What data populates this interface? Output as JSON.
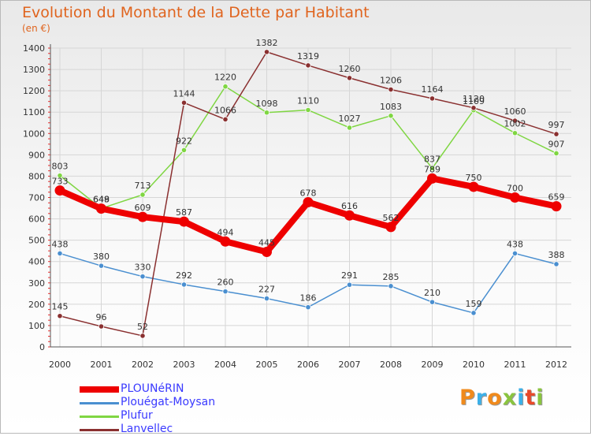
{
  "chart_data": {
    "type": "line",
    "title": "Evolution du Montant de la Dette par Habitant",
    "subtitle": "(en €)",
    "categories": [
      "2000",
      "2001",
      "2002",
      "2003",
      "2004",
      "2005",
      "2006",
      "2007",
      "2008",
      "2009",
      "2010",
      "2011",
      "2012"
    ],
    "ylim": [
      0,
      1400
    ],
    "yticks": [
      0,
      100,
      200,
      300,
      400,
      500,
      600,
      700,
      800,
      900,
      1000,
      1100,
      1200,
      1300,
      1400
    ],
    "grid": true,
    "legend_position": "bottom-left",
    "series": [
      {
        "name": "PLOUNéRIN",
        "color": "#ee0000",
        "width": 8,
        "values": [
          733,
          648,
          609,
          587,
          494,
          445,
          678,
          616,
          562,
          789,
          750,
          700,
          659
        ]
      },
      {
        "name": "Plouégat-Moysan",
        "color": "#4a8fd0",
        "width": 1.5,
        "values": [
          438,
          380,
          330,
          292,
          260,
          227,
          186,
          291,
          285,
          210,
          159,
          438,
          388
        ]
      },
      {
        "name": "Plufur",
        "color": "#7fd642",
        "width": 1.5,
        "values": [
          803,
          649,
          713,
          922,
          1220,
          1098,
          1110,
          1027,
          1083,
          837,
          1109,
          1002,
          907
        ]
      },
      {
        "name": "Lanvellec",
        "color": "#8a3030",
        "width": 1.5,
        "values": [
          145,
          96,
          52,
          1144,
          1066,
          1382,
          1319,
          1260,
          1206,
          1164,
          1120,
          1060,
          997
        ]
      }
    ]
  },
  "logo": {
    "text": "Proxiti",
    "colors": [
      "#f08a1c",
      "#3cb0e8",
      "#f08a1c",
      "#8ac43f",
      "#3cb0e8",
      "#e8492a",
      "#8ac43f"
    ]
  }
}
